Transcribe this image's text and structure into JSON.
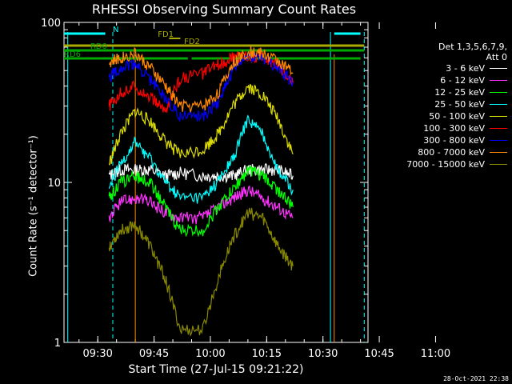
{
  "chart_data": {
    "type": "line",
    "title": "RHESSI Observing Summary Count Rates",
    "xlabel": "Start Time (27-Jul-15 09:21:22)",
    "ylabel": "Count Rate (s⁻¹ detector⁻¹)",
    "x_ticks": [
      "09:30",
      "09:45",
      "10:00",
      "10:15",
      "10:30",
      "10:45",
      "11:00"
    ],
    "y_ticks": [
      "1",
      "10",
      "100"
    ],
    "y_scale": "log",
    "ylim": [
      1,
      100
    ],
    "xlim": [
      "09:21",
      "11:02"
    ],
    "legend_header": [
      "Det 1,3,5,6,7,9,",
      "Att 0"
    ],
    "legend_position": "right",
    "series": [
      {
        "name": "3 - 6 keV",
        "color": "#ffffff",
        "values": [
          [
            33,
            11
          ],
          [
            36,
            12
          ],
          [
            40,
            12
          ],
          [
            44,
            12
          ],
          [
            48,
            11
          ],
          [
            52,
            11.5
          ],
          [
            58,
            11
          ],
          [
            62,
            11
          ],
          [
            66,
            11
          ],
          [
            70,
            12
          ],
          [
            74,
            12
          ],
          [
            78,
            12
          ],
          [
            82,
            11
          ]
        ]
      },
      {
        "name": "6 - 12 keV",
        "color": "#ff33ff",
        "values": [
          [
            33,
            6
          ],
          [
            36,
            7.5
          ],
          [
            40,
            8
          ],
          [
            44,
            7.5
          ],
          [
            48,
            6.5
          ],
          [
            52,
            6
          ],
          [
            58,
            6
          ],
          [
            62,
            7
          ],
          [
            66,
            8
          ],
          [
            70,
            9
          ],
          [
            74,
            8
          ],
          [
            78,
            7
          ],
          [
            82,
            6
          ]
        ]
      },
      {
        "name": "12 - 25 keV",
        "color": "#00ff00",
        "values": [
          [
            33,
            8
          ],
          [
            36,
            10
          ],
          [
            40,
            11
          ],
          [
            44,
            10
          ],
          [
            48,
            7
          ],
          [
            52,
            5
          ],
          [
            58,
            5
          ],
          [
            62,
            7
          ],
          [
            66,
            9
          ],
          [
            70,
            12
          ],
          [
            74,
            11
          ],
          [
            78,
            9
          ],
          [
            82,
            7
          ]
        ]
      },
      {
        "name": "25 - 50 keV",
        "color": "#00ffff",
        "values": [
          [
            33,
            9
          ],
          [
            36,
            13
          ],
          [
            40,
            18
          ],
          [
            44,
            14
          ],
          [
            48,
            10
          ],
          [
            52,
            8
          ],
          [
            58,
            8
          ],
          [
            62,
            10
          ],
          [
            66,
            14
          ],
          [
            70,
            25
          ],
          [
            74,
            20
          ],
          [
            78,
            12
          ],
          [
            82,
            9
          ]
        ]
      },
      {
        "name": "50 - 100 keV",
        "color": "#dddd00",
        "values": [
          [
            33,
            13
          ],
          [
            36,
            20
          ],
          [
            40,
            28
          ],
          [
            44,
            24
          ],
          [
            48,
            18
          ],
          [
            52,
            15
          ],
          [
            58,
            16
          ],
          [
            62,
            20
          ],
          [
            66,
            30
          ],
          [
            70,
            40
          ],
          [
            74,
            35
          ],
          [
            78,
            25
          ],
          [
            82,
            15
          ]
        ]
      },
      {
        "name": "100 - 300 keV",
        "color": "#ff0000",
        "values": [
          [
            33,
            30
          ],
          [
            36,
            36
          ],
          [
            40,
            40
          ],
          [
            44,
            34
          ],
          [
            48,
            28
          ],
          [
            52,
            45
          ],
          [
            58,
            48
          ],
          [
            62,
            55
          ],
          [
            66,
            60
          ],
          [
            70,
            62
          ],
          [
            74,
            60
          ],
          [
            78,
            55
          ],
          [
            82,
            42
          ]
        ]
      },
      {
        "name": "300 - 800 keV",
        "color": "#0000ff",
        "values": [
          [
            33,
            46
          ],
          [
            36,
            52
          ],
          [
            40,
            55
          ],
          [
            44,
            44
          ],
          [
            48,
            34
          ],
          [
            52,
            26
          ],
          [
            58,
            26
          ],
          [
            62,
            32
          ],
          [
            66,
            50
          ],
          [
            70,
            62
          ],
          [
            74,
            60
          ],
          [
            78,
            52
          ],
          [
            82,
            42
          ]
        ]
      },
      {
        "name": "800 - 7000 keV",
        "color": "#ff8800",
        "values": [
          [
            33,
            56
          ],
          [
            36,
            60
          ],
          [
            40,
            64
          ],
          [
            44,
            52
          ],
          [
            48,
            40
          ],
          [
            52,
            30
          ],
          [
            58,
            30
          ],
          [
            62,
            36
          ],
          [
            66,
            56
          ],
          [
            70,
            66
          ],
          [
            74,
            64
          ],
          [
            78,
            58
          ],
          [
            82,
            48
          ]
        ]
      },
      {
        "name": "7000 - 15000 keV",
        "color": "#888800",
        "values": [
          [
            33,
            4
          ],
          [
            36,
            5
          ],
          [
            40,
            5.5
          ],
          [
            44,
            4
          ],
          [
            48,
            2.5
          ],
          [
            52,
            1.2
          ],
          [
            58,
            1.2
          ],
          [
            62,
            2.5
          ],
          [
            66,
            4.5
          ],
          [
            70,
            6.5
          ],
          [
            74,
            6
          ],
          [
            78,
            4
          ],
          [
            82,
            3
          ]
        ]
      }
    ],
    "annotations": [
      {
        "label": "N",
        "color": "#00ffff"
      },
      {
        "label": "FD1",
        "color": "#aaaa00"
      },
      {
        "label": "FD2",
        "color": "#aaaa00"
      },
      {
        "label": "RD0",
        "color": "#00aa00"
      },
      {
        "label": "RD6",
        "color": "#00aa00"
      }
    ]
  },
  "timestamp": "28-Oct-2021 22:38"
}
